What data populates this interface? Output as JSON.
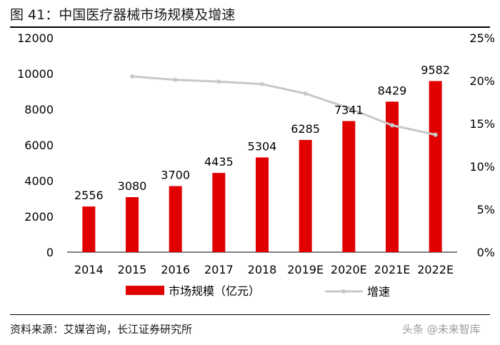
{
  "figure": {
    "title": "图 41：中国医疗器械市场规模及增速",
    "source": "资料来源：艾媒咨询，长江证券研究所",
    "watermark": "头条 @未来智库"
  },
  "colors": {
    "bar": "#e00000",
    "line": "#c8c8c8",
    "axis": "#000000",
    "text": "#000000"
  },
  "chart_data": {
    "type": "bar",
    "title": "中国医疗器械市场规模及增速",
    "categories": [
      "2014",
      "2015",
      "2016",
      "2017",
      "2018",
      "2019E",
      "2020E",
      "2021E",
      "2022E"
    ],
    "series": [
      {
        "name": "市场规模（亿元）",
        "type": "bar",
        "axis": "left",
        "values": [
          2556,
          3080,
          3700,
          4435,
          5304,
          6285,
          7341,
          8429,
          9582
        ]
      },
      {
        "name": "增速",
        "type": "line",
        "axis": "right",
        "values": [
          null,
          20.5,
          20.1,
          19.9,
          19.6,
          18.5,
          16.8,
          14.8,
          13.7
        ]
      }
    ],
    "y_left": {
      "min": 0,
      "max": 12000,
      "step": 2000,
      "ticks": [
        "0",
        "2000",
        "4000",
        "6000",
        "8000",
        "10000",
        "12000"
      ]
    },
    "y_right": {
      "min": 0,
      "max": 25,
      "step": 5,
      "ticks": [
        "0%",
        "5%",
        "10%",
        "15%",
        "20%",
        "25%"
      ]
    },
    "legend_position": "bottom",
    "grid": false
  }
}
